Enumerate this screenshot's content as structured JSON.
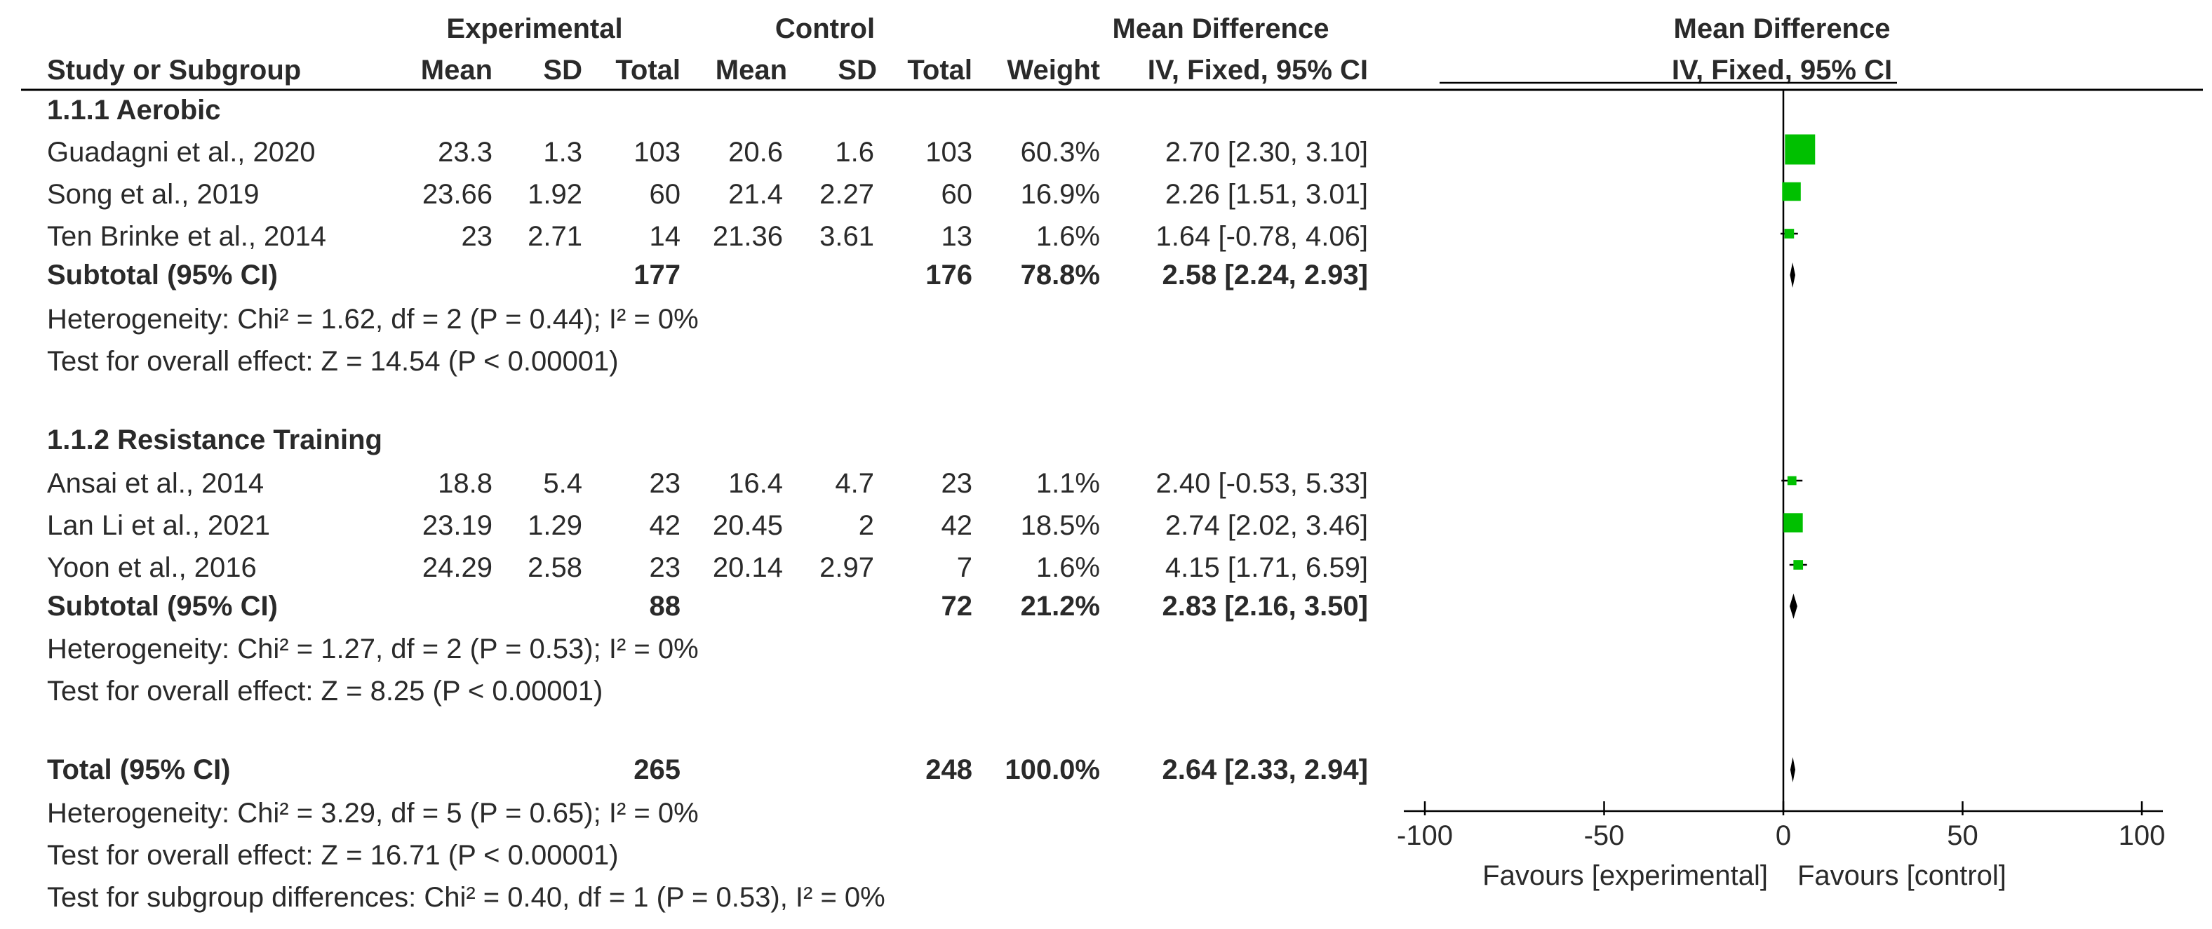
{
  "header": {
    "experimental": "Experimental",
    "control": "Control",
    "mean_difference": "Mean Difference",
    "plot_mean_difference": "Mean Difference",
    "study_col": "Study or Subgroup",
    "exp_mean": "Mean",
    "exp_sd": "SD",
    "exp_total": "Total",
    "ctl_mean": "Mean",
    "ctl_sd": "SD",
    "ctl_total": "Total",
    "weight": "Weight",
    "method": "IV, Fixed, 95% CI",
    "plot_method": "IV, Fixed, 95% CI"
  },
  "groups": [
    {
      "title": "1.1.1 Aerobic",
      "studies": [
        {
          "name": "Guadagni et al., 2020",
          "exp_mean": "23.3",
          "exp_sd": "1.3",
          "exp_total": "103",
          "ctl_mean": "20.6",
          "ctl_sd": "1.6",
          "ctl_total": "103",
          "weight": "60.3%",
          "ci_text": "2.70 [2.30, 3.10]",
          "md": 2.7,
          "lo": 2.3,
          "hi": 3.1,
          "w": 60.3
        },
        {
          "name": "Song et al., 2019",
          "exp_mean": "23.66",
          "exp_sd": "1.92",
          "exp_total": "60",
          "ctl_mean": "21.4",
          "ctl_sd": "2.27",
          "ctl_total": "60",
          "weight": "16.9%",
          "ci_text": "2.26 [1.51, 3.01]",
          "md": 2.26,
          "lo": 1.51,
          "hi": 3.01,
          "w": 16.9
        },
        {
          "name": "Ten Brinke et al., 2014",
          "exp_mean": "23",
          "exp_sd": "2.71",
          "exp_total": "14",
          "ctl_mean": "21.36",
          "ctl_sd": "3.61",
          "ctl_total": "13",
          "weight": "1.6%",
          "ci_text": "1.64 [-0.78, 4.06]",
          "md": 1.64,
          "lo": -0.78,
          "hi": 4.06,
          "w": 1.6
        }
      ],
      "subtotal": {
        "label": "Subtotal (95% CI)",
        "exp_total": "177",
        "ctl_total": "176",
        "weight": "78.8%",
        "ci_text": "2.58 [2.24, 2.93]",
        "md": 2.58,
        "lo": 2.24,
        "hi": 2.93
      },
      "heterogeneity": "Heterogeneity: Chi² = 1.62, df = 2 (P = 0.44); I² = 0%",
      "overall": "Test for overall effect: Z = 14.54 (P < 0.00001)"
    },
    {
      "title": "1.1.2 Resistance Training",
      "studies": [
        {
          "name": "Ansai et al., 2014",
          "exp_mean": "18.8",
          "exp_sd": "5.4",
          "exp_total": "23",
          "ctl_mean": "16.4",
          "ctl_sd": "4.7",
          "ctl_total": "23",
          "weight": "1.1%",
          "ci_text": "2.40 [-0.53, 5.33]",
          "md": 2.4,
          "lo": -0.53,
          "hi": 5.33,
          "w": 1.1
        },
        {
          "name": "Lan Li et al., 2021",
          "exp_mean": "23.19",
          "exp_sd": "1.29",
          "exp_total": "42",
          "ctl_mean": "20.45",
          "ctl_sd": "2",
          "ctl_total": "42",
          "weight": "18.5%",
          "ci_text": "2.74 [2.02, 3.46]",
          "md": 2.74,
          "lo": 2.02,
          "hi": 3.46,
          "w": 18.5
        },
        {
          "name": "Yoon et al., 2016",
          "exp_mean": "24.29",
          "exp_sd": "2.58",
          "exp_total": "23",
          "ctl_mean": "20.14",
          "ctl_sd": "2.97",
          "ctl_total": "7",
          "weight": "1.6%",
          "ci_text": "4.15 [1.71, 6.59]",
          "md": 4.15,
          "lo": 1.71,
          "hi": 6.59,
          "w": 1.6
        }
      ],
      "subtotal": {
        "label": "Subtotal (95% CI)",
        "exp_total": "88",
        "ctl_total": "72",
        "weight": "21.2%",
        "ci_text": "2.83 [2.16, 3.50]",
        "md": 2.83,
        "lo": 2.16,
        "hi": 3.5
      },
      "heterogeneity": "Heterogeneity: Chi² = 1.27, df = 2 (P = 0.53); I² = 0%",
      "overall": "Test for overall effect: Z = 8.25 (P < 0.00001)"
    }
  ],
  "total": {
    "label": "Total (95% CI)",
    "exp_total": "265",
    "ctl_total": "248",
    "weight": "100.0%",
    "ci_text": "2.64 [2.33, 2.94]",
    "md": 2.64,
    "lo": 2.33,
    "hi": 2.94,
    "heterogeneity": "Heterogeneity: Chi² = 3.29, df = 5 (P = 0.65); I² = 0%",
    "overall": "Test for overall effect: Z = 16.71 (P < 0.00001)",
    "subgroup": "Test for subgroup differences: Chi² = 0.40, df = 1 (P = 0.53), I² = 0%"
  },
  "axis": {
    "min": -100,
    "max": 100,
    "ticks": [
      -100,
      -50,
      0,
      50,
      100
    ],
    "tick_labels": [
      "-100",
      "-50",
      "0",
      "50",
      "100"
    ],
    "favours_left": "Favours [experimental]",
    "favours_right": "Favours [control]"
  },
  "colors": {
    "square": "#00c000",
    "line": "#000000",
    "text": "#2a2a2a"
  },
  "chart_data": {
    "type": "forest",
    "title": "Mean Difference IV, Fixed, 95% CI",
    "xlabel": "Favours [experimental]  Favours [control]",
    "xlim": [
      -100,
      100
    ],
    "series": [
      {
        "name": "Guadagni et al., 2020",
        "md": 2.7,
        "lo": 2.3,
        "hi": 3.1,
        "weight": 60.3
      },
      {
        "name": "Song et al., 2019",
        "md": 2.26,
        "lo": 1.51,
        "hi": 3.01,
        "weight": 16.9
      },
      {
        "name": "Ten Brinke et al., 2014",
        "md": 1.64,
        "lo": -0.78,
        "hi": 4.06,
        "weight": 1.6
      },
      {
        "name": "Subtotal Aerobic",
        "md": 2.58,
        "lo": 2.24,
        "hi": 2.93,
        "weight": 78.8
      },
      {
        "name": "Ansai et al., 2014",
        "md": 2.4,
        "lo": -0.53,
        "hi": 5.33,
        "weight": 1.1
      },
      {
        "name": "Lan Li et al., 2021",
        "md": 2.74,
        "lo": 2.02,
        "hi": 3.46,
        "weight": 18.5
      },
      {
        "name": "Yoon et al., 2016",
        "md": 4.15,
        "lo": 1.71,
        "hi": 6.59,
        "weight": 1.6
      },
      {
        "name": "Subtotal Resistance Training",
        "md": 2.83,
        "lo": 2.16,
        "hi": 3.5,
        "weight": 21.2
      },
      {
        "name": "Total",
        "md": 2.64,
        "lo": 2.33,
        "hi": 2.94,
        "weight": 100.0
      }
    ]
  }
}
